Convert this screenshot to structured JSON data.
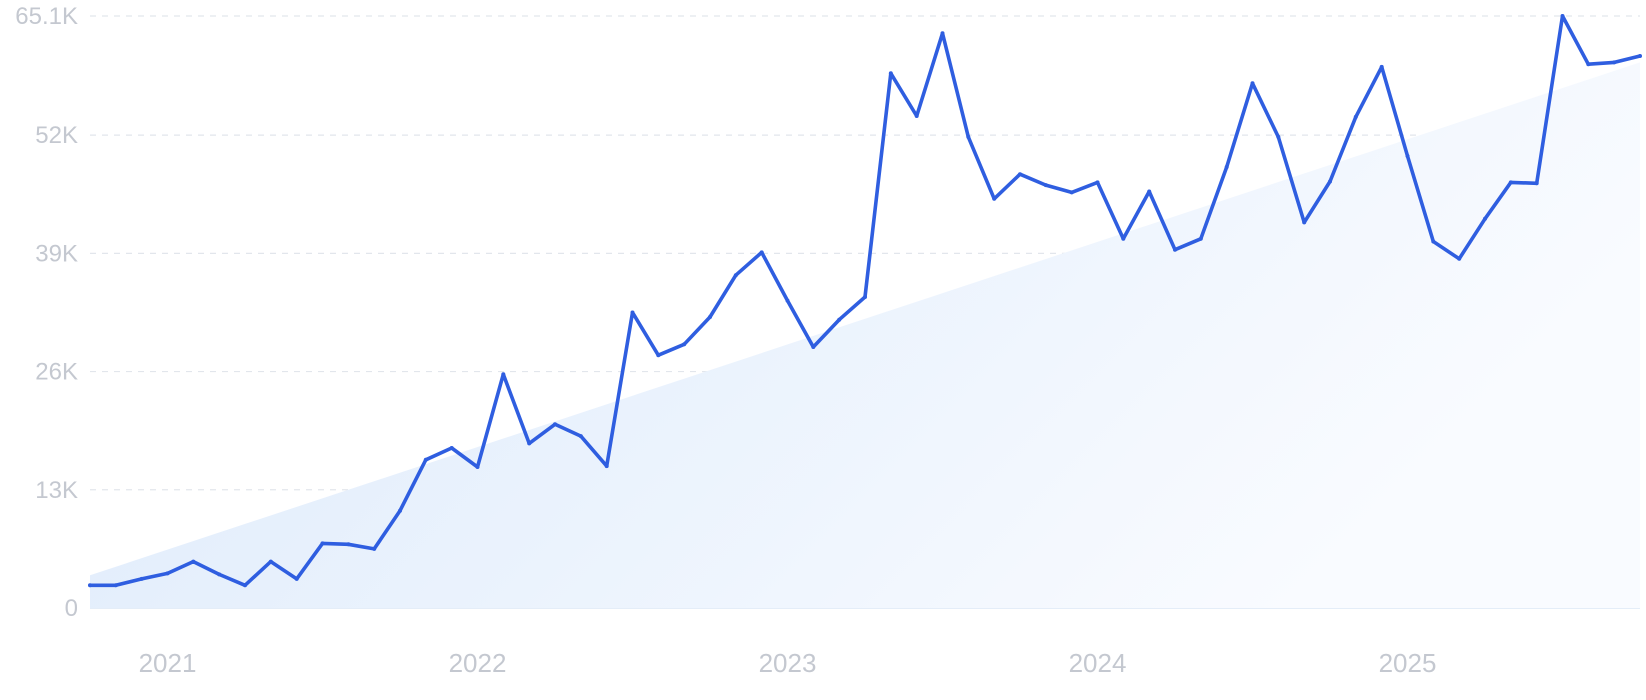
{
  "chart_data": {
    "type": "line",
    "title": "",
    "xlabel": "",
    "ylabel": "",
    "ylim": [
      0,
      65100
    ],
    "y_tick_values": [
      0,
      13000,
      26000,
      39000,
      52000,
      65100
    ],
    "y_tick_labels": [
      "0",
      "13K",
      "26K",
      "39K",
      "52K",
      "65.1K"
    ],
    "x_tick_labels": [
      "2021",
      "2022",
      "2023",
      "2024",
      "2025"
    ],
    "x_tick_positions": [
      "2021-01",
      "2022-01",
      "2023-01",
      "2024-01",
      "2025-01"
    ],
    "grid": true,
    "legend": "none",
    "trend_area": {
      "start_value": 3600,
      "end_value": 60000
    },
    "colors": {
      "line": "#2f5ee0",
      "area": "#e2eefc",
      "grid": "#e2e6ec",
      "tick_text": "#c4c8d0"
    },
    "series": [
      {
        "x": [
          "2020-10",
          "2020-11",
          "2020-12",
          "2021-01",
          "2021-02",
          "2021-03",
          "2021-04",
          "2021-05",
          "2021-06",
          "2021-07",
          "2021-08",
          "2021-09",
          "2021-10",
          "2021-11",
          "2021-12",
          "2022-01",
          "2022-02",
          "2022-03",
          "2022-04",
          "2022-05",
          "2022-06",
          "2022-07",
          "2022-08",
          "2022-09",
          "2022-10",
          "2022-11",
          "2022-12",
          "2023-01",
          "2023-02",
          "2023-03",
          "2023-04",
          "2023-05",
          "2023-06",
          "2023-07",
          "2023-08",
          "2023-09",
          "2023-10",
          "2023-11",
          "2023-12",
          "2024-01",
          "2024-02",
          "2024-03",
          "2024-04",
          "2024-05",
          "2024-06",
          "2024-07",
          "2024-08",
          "2024-09",
          "2024-10",
          "2024-11",
          "2024-12",
          "2025-01",
          "2025-02",
          "2025-03",
          "2025-04",
          "2025-05",
          "2025-06",
          "2025-07",
          "2025-08",
          "2025-09",
          "2025-10"
        ],
        "values": [
          2500,
          2500,
          3200,
          3800,
          5100,
          3700,
          2500,
          5100,
          3200,
          7100,
          7000,
          6500,
          10700,
          16300,
          17600,
          15500,
          25700,
          18100,
          20200,
          18900,
          15600,
          32500,
          27800,
          29000,
          32000,
          36600,
          39100,
          33800,
          28700,
          31700,
          34200,
          58800,
          54100,
          63200,
          51800,
          45000,
          47700,
          46500,
          45700,
          46800,
          40600,
          45800,
          39400,
          40600,
          48500,
          57700,
          51800,
          42400,
          46900,
          54000,
          59500,
          49700,
          40300,
          38400,
          42800,
          46800,
          46700,
          65100,
          59800,
          60000,
          60700
        ]
      }
    ]
  }
}
